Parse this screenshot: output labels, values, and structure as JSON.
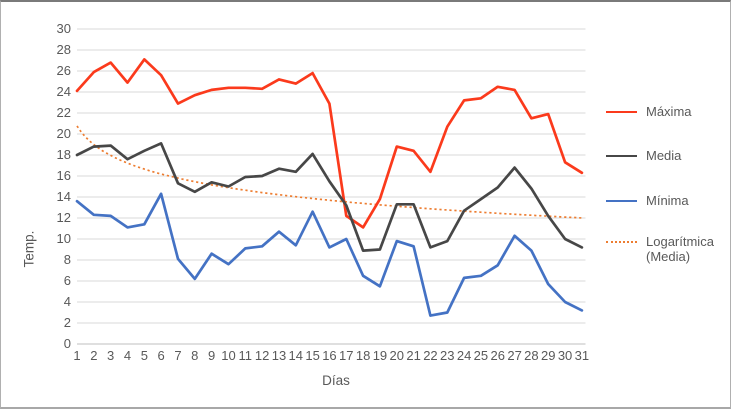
{
  "chart_data": {
    "type": "line",
    "title": "",
    "xlabel": "Días",
    "ylabel": "Temp.",
    "x": [
      1,
      2,
      3,
      4,
      5,
      6,
      7,
      8,
      9,
      10,
      11,
      12,
      13,
      14,
      15,
      16,
      17,
      18,
      19,
      20,
      21,
      22,
      23,
      24,
      25,
      26,
      27,
      28,
      29,
      30,
      31
    ],
    "y_ticks": [
      0,
      2,
      4,
      6,
      8,
      10,
      12,
      14,
      16,
      18,
      20,
      22,
      24,
      26,
      28,
      30
    ],
    "ylim": [
      0,
      30
    ],
    "grid": "horizontal",
    "legend_position": "right",
    "series": [
      {
        "name": "Máxima",
        "color": "#FB3A1C",
        "values": [
          24.1,
          25.9,
          26.8,
          24.9,
          27.1,
          25.6,
          22.9,
          23.7,
          24.2,
          24.4,
          24.4,
          24.3,
          25.2,
          24.8,
          25.8,
          22.9,
          12.2,
          11.1,
          13.8,
          18.8,
          18.4,
          16.4,
          20.7,
          23.2,
          23.4,
          24.5,
          24.2,
          21.5,
          21.9,
          17.3,
          16.3
        ]
      },
      {
        "name": "Media",
        "color": "#474747",
        "values": [
          18.0,
          18.8,
          18.9,
          17.6,
          18.4,
          19.1,
          15.3,
          14.5,
          15.4,
          15.0,
          15.9,
          16.0,
          16.7,
          16.4,
          18.1,
          15.5,
          13.2,
          8.9,
          9.0,
          13.3,
          13.3,
          9.2,
          9.8,
          12.7,
          13.8,
          14.9,
          16.8,
          14.8,
          12.2,
          10.0,
          9.2
        ]
      },
      {
        "name": "Mínima",
        "color": "#4472C4",
        "values": [
          13.6,
          12.3,
          12.2,
          11.1,
          11.4,
          14.3,
          8.1,
          6.2,
          8.6,
          7.6,
          9.1,
          9.3,
          10.7,
          9.4,
          12.6,
          9.2,
          10.0,
          6.5,
          5.5,
          9.8,
          9.3,
          2.7,
          3.0,
          6.3,
          6.5,
          7.5,
          10.3,
          8.9,
          5.7,
          4.0,
          3.2
        ]
      }
    ],
    "trendline": {
      "name": "Logarítmica (Media)",
      "applies_to": "Media",
      "type": "logarithmic",
      "color": "#ED7D31",
      "style": "dotted",
      "a": 20.76,
      "b": -2.55
    }
  },
  "frame": {
    "background": "#FFFFFF",
    "gridline_color": "#D9D9D9",
    "axis_line_color": "#BFBFBF",
    "label_color": "#595959"
  }
}
